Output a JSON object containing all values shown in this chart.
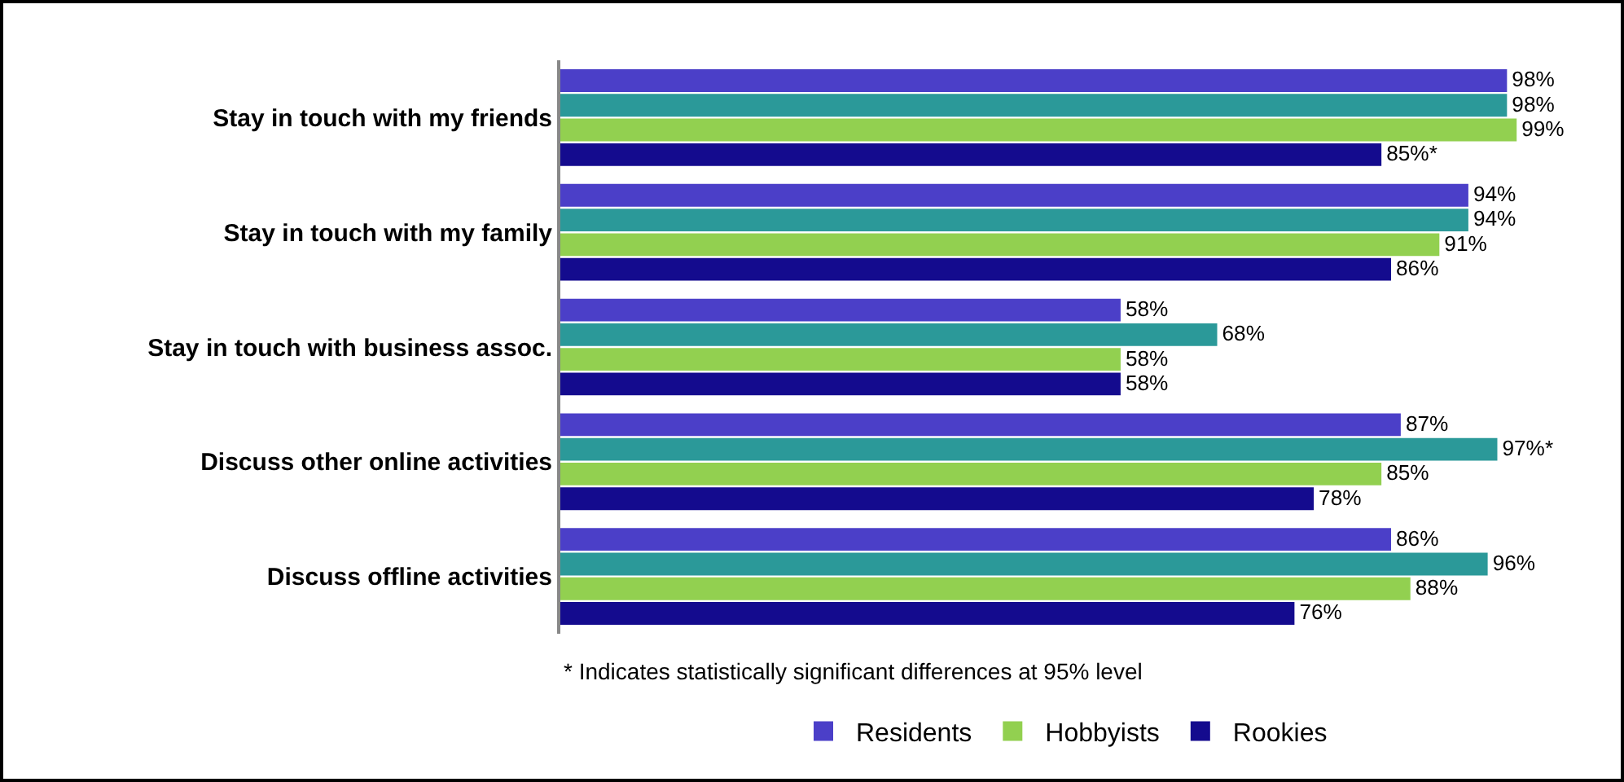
{
  "chart_data": {
    "type": "bar",
    "orientation": "horizontal",
    "categories": [
      "Stay in touch with my friends",
      "Stay in touch with my family",
      "Stay in touch with business assoc.",
      "Discuss other online activities",
      "Discuss offline activities"
    ],
    "series": [
      {
        "name": "Residents",
        "color": "#4b3fc8",
        "values": [
          98,
          94,
          58,
          87,
          86
        ],
        "value_labels": [
          "98%",
          "94%",
          "58%",
          "87%",
          "86%"
        ]
      },
      {
        "color": "#2b9999",
        "values": [
          98,
          94,
          68,
          97,
          96
        ],
        "value_labels": [
          "98%",
          "94%",
          "68%",
          "97%*",
          "96%"
        ]
      },
      {
        "name": "Hobbyists",
        "color": "#92d050",
        "values": [
          99,
          91,
          58,
          85,
          88
        ],
        "value_labels": [
          "99%",
          "91%",
          "58%",
          "85%",
          "88%"
        ]
      },
      {
        "name": "Rookies",
        "color": "#140b8e",
        "values": [
          85,
          86,
          58,
          78,
          76
        ],
        "value_labels": [
          "85%*",
          "86%",
          "58%",
          "78%",
          "76%"
        ]
      }
    ],
    "tick_labels": "y",
    "grid": false,
    "legend": "bottom",
    "annotations": [
      "* Indicates statistically significant differences at 95% level"
    ]
  }
}
